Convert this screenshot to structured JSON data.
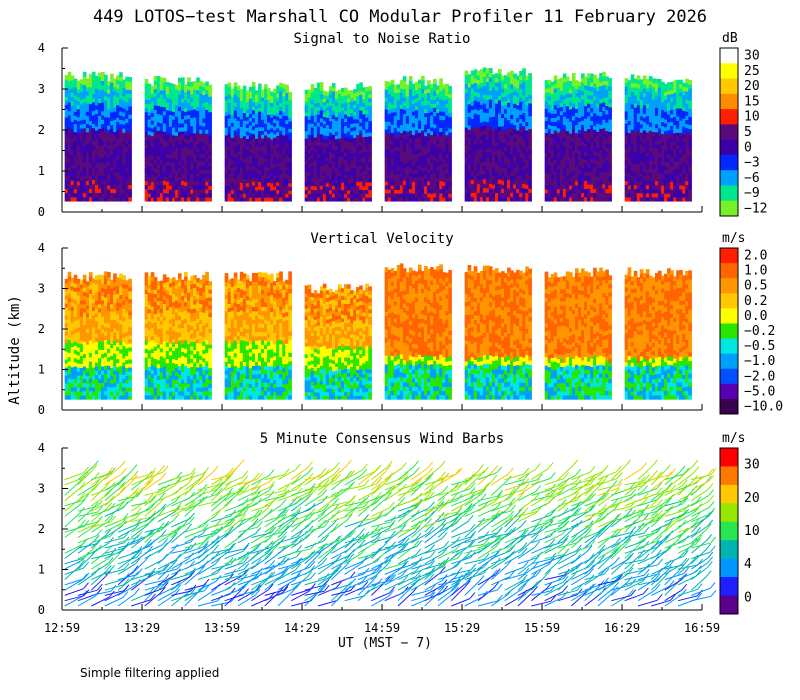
{
  "chart_data": {
    "title": "449 LOTOS−test Marshall CO Modular Profiler 11 February 2026",
    "ylabel": "Altitude (km)",
    "xlabel": "UT  (MST − 7)",
    "x_ticks": [
      "12:59",
      "13:29",
      "13:59",
      "14:29",
      "14:59",
      "15:29",
      "15:59",
      "16:29",
      "16:59"
    ],
    "y_ticks": [
      "0",
      "1",
      "2",
      "3",
      "4"
    ],
    "ylim": [
      0,
      4
    ],
    "panels": [
      {
        "type": "heatmap",
        "title": "Signal to Noise Ratio",
        "unit": "dB",
        "colorbar_labels": [
          "30",
          "25",
          "20",
          "15",
          "10",
          "5",
          "0",
          "−3",
          "−6",
          "−9",
          "−12"
        ],
        "colors": [
          "#ffffff",
          "#ffff00",
          "#ffc800",
          "#ff8c00",
          "#ff1e00",
          "#5a0a7a",
          "#3c00aa",
          "#0028ff",
          "#00a0ff",
          "#00e68c",
          "#78f028"
        ],
        "blocks": [
          {
            "start": "13:00",
            "end": "13:25",
            "top_km": 3.3
          },
          {
            "start": "13:30",
            "end": "13:55",
            "top_km": 3.2
          },
          {
            "start": "14:00",
            "end": "14:25",
            "top_km": 3.05
          },
          {
            "start": "14:30",
            "end": "14:55",
            "top_km": 3.05
          },
          {
            "start": "15:00",
            "end": "15:25",
            "top_km": 3.2
          },
          {
            "start": "15:30",
            "end": "15:55",
            "top_km": 3.4
          },
          {
            "start": "16:00",
            "end": "16:25",
            "top_km": 3.3
          },
          {
            "start": "16:30",
            "end": "16:55",
            "top_km": 3.25
          }
        ]
      },
      {
        "type": "heatmap",
        "title": "Vertical Velocity",
        "unit": "m/s",
        "colorbar_labels": [
          "2.0",
          "1.0",
          "0.5",
          "0.2",
          "0.0",
          "−0.2",
          "−0.5",
          "−1.0",
          "−2.0",
          "−5.0",
          "−10.0"
        ],
        "colors": [
          "#ff1e00",
          "#ff6400",
          "#ff9600",
          "#ffc800",
          "#ffff00",
          "#28e600",
          "#00e6e6",
          "#00a0ff",
          "#0050ff",
          "#5a00b4",
          "#3c0050"
        ],
        "blocks": [
          {
            "start": "13:00",
            "end": "13:25",
            "top_km": 3.3
          },
          {
            "start": "13:30",
            "end": "13:55",
            "top_km": 3.3
          },
          {
            "start": "14:00",
            "end": "14:25",
            "top_km": 3.3
          },
          {
            "start": "14:30",
            "end": "14:55",
            "top_km": 3.0
          },
          {
            "start": "15:00",
            "end": "15:25",
            "top_km": 3.5
          },
          {
            "start": "15:30",
            "end": "15:55",
            "top_km": 3.5
          },
          {
            "start": "16:00",
            "end": "16:25",
            "top_km": 3.4
          },
          {
            "start": "16:30",
            "end": "16:55",
            "top_km": 3.4
          }
        ]
      },
      {
        "type": "wind_barbs",
        "title": "5 Minute Consensus Wind Barbs",
        "unit": "m/s",
        "colorbar_labels": [
          "30",
          "20",
          "10",
          "4",
          "0"
        ],
        "colors": [
          "#ff0000",
          "#ff7800",
          "#ffc800",
          "#96e600",
          "#28e650",
          "#00b4b4",
          "#0096ff",
          "#1e1eff",
          "#5a008c"
        ]
      }
    ],
    "footer": "Simple filtering applied"
  }
}
